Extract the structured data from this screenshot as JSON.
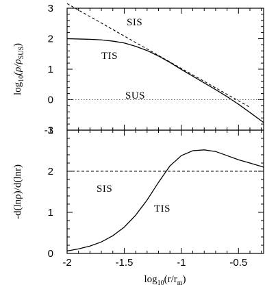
{
  "chart_data": [
    {
      "type": "line",
      "panel": "top",
      "xlim": [
        -2.0,
        -0.28
      ],
      "ylim": [
        -1,
        3
      ],
      "xticks": [
        "-2",
        "-1.5",
        "-1",
        "-0.5"
      ],
      "yticks": [
        "3",
        "2",
        "1",
        "0",
        "-1"
      ],
      "ylabel_text": "log",
      "ylabel_sub": "10",
      "ylabel_rho": "(ρ/ρ",
      "ylabel_rho_sub": "SUS",
      "ylabel_close": ")",
      "annotations": [
        "SIS",
        "TIS",
        "SUS"
      ],
      "series": [
        {
          "name": "TIS",
          "style": "solid",
          "x": [
            -2.0,
            -1.9,
            -1.8,
            -1.7,
            -1.6,
            -1.5,
            -1.4,
            -1.3,
            -1.2,
            -1.1,
            -1.0,
            -0.9,
            -0.8,
            -0.7,
            -0.6,
            -0.5,
            -0.4,
            -0.28
          ],
          "y": [
            2.0,
            1.99,
            1.98,
            1.96,
            1.92,
            1.86,
            1.75,
            1.61,
            1.43,
            1.22,
            0.99,
            0.77,
            0.55,
            0.33,
            0.1,
            -0.15,
            -0.42,
            -0.75
          ]
        },
        {
          "name": "SIS",
          "style": "dashed",
          "x": [
            -2.0,
            -0.4
          ],
          "y": [
            3.15,
            -0.25
          ]
        },
        {
          "name": "SUS",
          "style": "dotted",
          "x": [
            -2.0,
            -0.28
          ],
          "y": [
            0,
            0
          ]
        }
      ]
    },
    {
      "type": "line",
      "panel": "bottom",
      "xlim": [
        -2.0,
        -0.28
      ],
      "ylim": [
        0,
        3
      ],
      "xticks": [
        "-2",
        "-1.5",
        "-1",
        "-0.5"
      ],
      "yticks": [
        "3",
        "2",
        "1",
        "0"
      ],
      "xlabel_text": "log",
      "xlabel_sub": "10",
      "xlabel_rest": "(r/r",
      "xlabel_rest_sub": "m",
      "xlabel_close": ")",
      "ylabel": "-d(lnρ)/d(lnr)",
      "annotations": [
        "SIS",
        "TIS"
      ],
      "series": [
        {
          "name": "TIS",
          "style": "solid",
          "x": [
            -2.0,
            -1.9,
            -1.8,
            -1.7,
            -1.6,
            -1.5,
            -1.4,
            -1.3,
            -1.2,
            -1.1,
            -1.0,
            -0.9,
            -0.8,
            -0.7,
            -0.6,
            -0.5,
            -0.4,
            -0.28
          ],
          "y": [
            0.06,
            0.11,
            0.18,
            0.28,
            0.43,
            0.64,
            0.93,
            1.3,
            1.73,
            2.13,
            2.38,
            2.5,
            2.52,
            2.48,
            2.38,
            2.28,
            2.2,
            2.1
          ]
        },
        {
          "name": "SIS",
          "style": "dashed",
          "x": [
            -2.0,
            -0.28
          ],
          "y": [
            2,
            2
          ]
        }
      ]
    }
  ]
}
